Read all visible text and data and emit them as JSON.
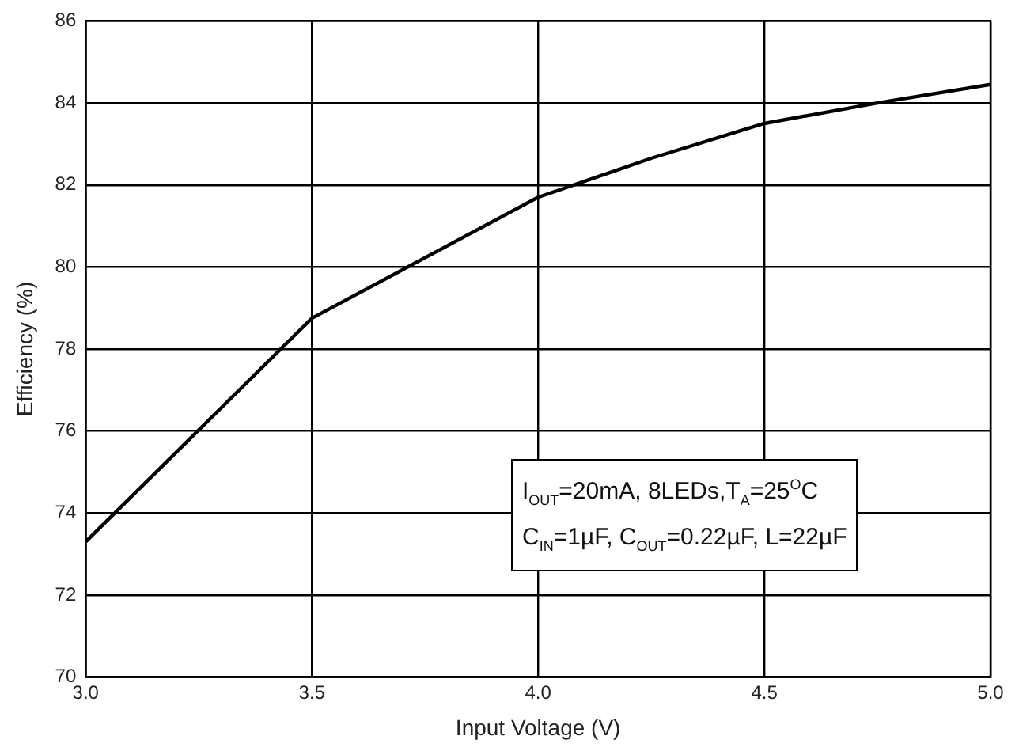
{
  "chart_data": {
    "type": "line",
    "xlabel": "Input Voltage (V)",
    "ylabel": "Efficiency (%)",
    "x": [
      3.0,
      3.5,
      4.0,
      4.25,
      4.5,
      4.75,
      5.0
    ],
    "series": [
      {
        "color": "#000000",
        "values": [
          73.3,
          78.75,
          81.7,
          82.65,
          83.5,
          84.0,
          84.45
        ]
      }
    ],
    "xlim": [
      3.0,
      5.0
    ],
    "xticks": [
      {
        "value": 3.0,
        "label": "3.0"
      },
      {
        "value": 3.5,
        "label": "3.5"
      },
      {
        "value": 4.0,
        "label": "4.0"
      },
      {
        "value": 4.5,
        "label": "4.5"
      },
      {
        "value": 5.0,
        "label": "5.0"
      }
    ],
    "ylim": [
      70,
      86
    ],
    "yticks": [
      70,
      72,
      74,
      76,
      78,
      80,
      82,
      84,
      86
    ],
    "grid": true,
    "legend": false,
    "marker": "none",
    "line_style": "solid",
    "annotations": [
      "I$_{OUT}$=20mA, 8LEDs,T$_{A}$=25$^{O}$C\nC$_{IN}$=1µF, C$_{OUT}$=0.22µF, L=22µF"
    ]
  }
}
